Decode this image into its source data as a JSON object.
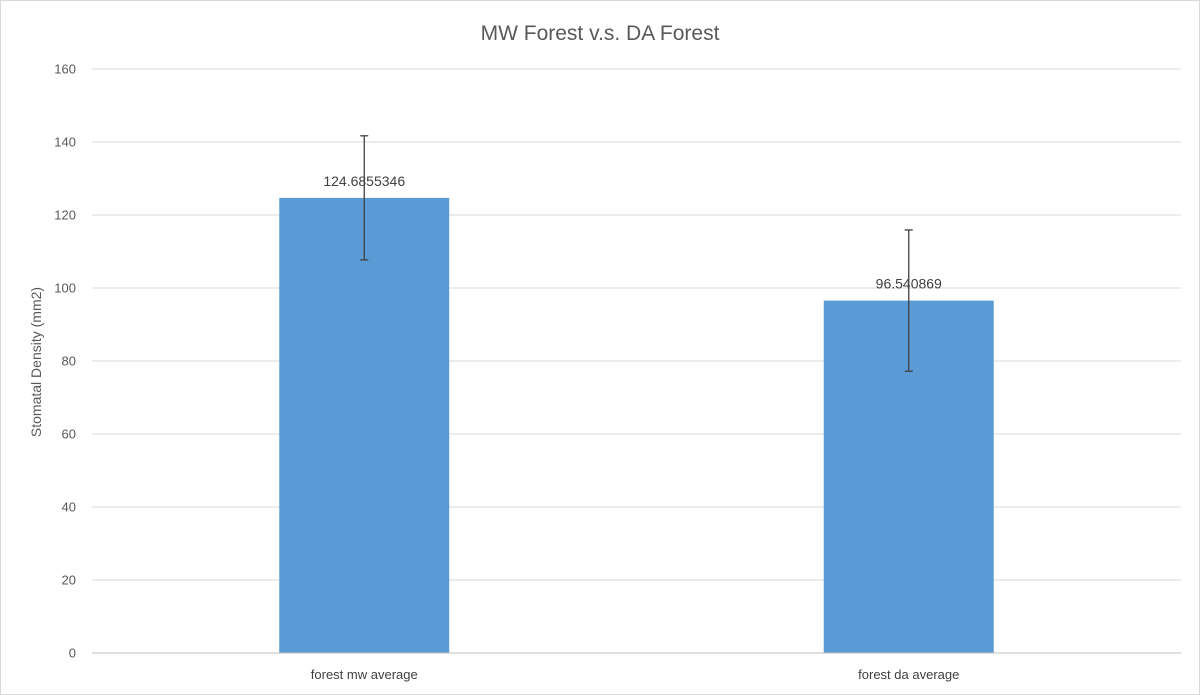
{
  "chart_data": {
    "type": "bar",
    "title": "MW Forest v.s. DA Forest",
    "xlabel": "",
    "ylabel": "Stomatal Density (mm2)",
    "categories": [
      "forest mw average",
      "forest da average"
    ],
    "values": [
      124.6855346,
      96.540869
    ],
    "data_labels": [
      "124.6855346",
      "96.540869"
    ],
    "error_bars": [
      [
        107.7,
        141.7
      ],
      [
        77.2,
        115.9
      ]
    ],
    "ylim": [
      0,
      160
    ],
    "yticks": [
      0,
      20,
      40,
      60,
      80,
      100,
      120,
      140,
      160
    ],
    "grid": true,
    "legend": "none",
    "colors": {
      "bar": "#5b9bd5",
      "grid": "#d9d9d9",
      "error_bar": "#404040",
      "axis": "#bfbfbf"
    }
  }
}
